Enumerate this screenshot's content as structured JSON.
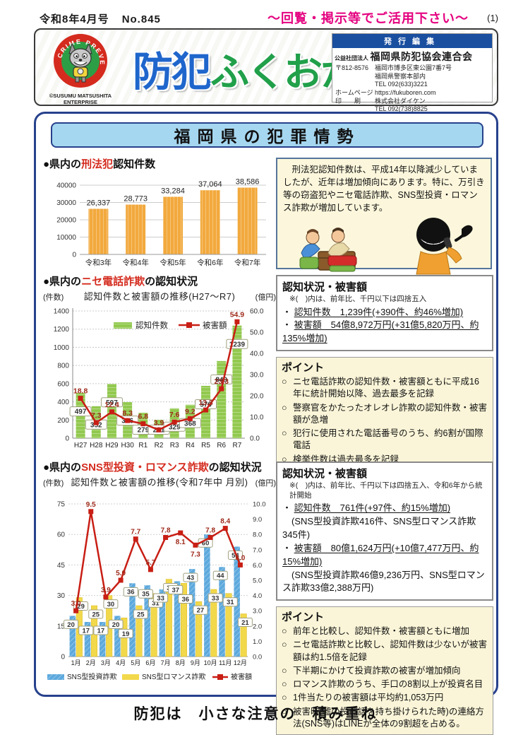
{
  "page": {
    "issue": "令和8年4月号",
    "number": "No.845",
    "notice": "〜回覧・掲示等でご活用下さい〜",
    "page_number": "(1)",
    "slogan": "防犯は　小さな注意の　積み重ね"
  },
  "masthead": {
    "title_part1": "防犯",
    "title_part2": "ふくおか",
    "logo_ring_text": "CRIME PREVENTION",
    "logo_credit1": "©SUSUMU MATSUSHITA",
    "logo_credit2": "ENTERPRISE",
    "publisher": {
      "header": "発行編集",
      "org_prefix": "公益社団法人",
      "org_name": "福岡県防犯協会連合会",
      "postal": "〒812-8576",
      "address1": "福岡市博多区東公園7番7号",
      "address2": "福岡県警察本部内",
      "tel1": "TEL 092(633)3221",
      "homepage_label": "ホームページ",
      "homepage": "https://fukuboren.com",
      "print_label": "印　　刷",
      "printer": "株式会社ダイケン",
      "tel2": "TEL 092(738)8825"
    }
  },
  "banner_title": "福岡県の犯罪情勢",
  "section1": {
    "heading_pre": "●県内の",
    "heading_red": "刑法犯",
    "heading_post": "認知件数",
    "info_text": "　刑法犯認知件数は、平成14年以降減少していましたが、近年は増加傾向にあります。特に、万引き等の窃盗犯やニセ電話詐欺、SNS型投資・ロマンス詐欺が増加しています。"
  },
  "section2": {
    "heading_pre": "●県内の",
    "heading_red": "ニセ電話詐欺",
    "heading_post": "の認知状況",
    "stats_title": "認知状況・被害額",
    "stats_note": "※(　)内は、前年比、千円以下は四捨五入",
    "stats": [
      {
        "bullet": "・",
        "text": "認知件数　1,239件(+390件、約46%増加)",
        "underline": true
      },
      {
        "bullet": "・",
        "text": "被害額　54億8,972万円(+31億5,820万円、約135%増加)",
        "underline": true
      }
    ],
    "points_title": "ポイント",
    "points_marker": "○",
    "points": [
      "ニセ電話詐欺の認知件数・被害額ともに平成16年に統計開始以降、過去最多を記録",
      "警察官をかたったオレオレ詐欺の認知件数・被害額が急増",
      "犯行に使用された電話番号のうち、約6割が国際電話",
      "検挙件数は過去最多を記録"
    ]
  },
  "section3": {
    "heading_pre": "●県内の",
    "heading_red": "SNS型投資・ロマンス詐欺",
    "heading_post": "の認知状況",
    "stats_title": "認知状況・被害額",
    "stats_note": "※(　)内は、前年比、千円以下は四捨五入、令和6年から統計開始",
    "stats": [
      {
        "bullet": "・",
        "text": "認知件数　761件(+97件、約15%増加)",
        "underline": true
      },
      {
        "bullet": "",
        "text": "(SNS型投資詐欺416件、SNS型ロマンス詐欺345件)",
        "underline": false
      },
      {
        "bullet": "・",
        "text": "被害額　80億1,624万円(+10億7,477万円、約15%増加)",
        "underline": true
      },
      {
        "bullet": "",
        "text": "(SNS型投資詐欺46億9,236万円、SNS型ロマンス詐欺33億2,388万円)",
        "underline": false
      }
    ],
    "points_title": "ポイント",
    "points_marker": "○",
    "points": [
      "前年と比較し、認知件数・被害額ともに増加",
      "ニセ電話詐欺と比較し、認知件数は少ないが被害額は約1.5倍を記録",
      "下半期にかけて投資詐欺の被害が増加傾向",
      "ロマンス詐欺のうち、手口の8割以上が投資名目",
      "1件当たりの被害額は平均約1,053万円",
      "被害時(嘘の投資話を持ち掛けられた時)の連絡方法(SNS等)はLINEが全体の9割超を占める。"
    ]
  },
  "chart_data": [
    {
      "type": "bar",
      "title": "県内の刑法犯認知件数",
      "categories": [
        "令和3年",
        "令和4年",
        "令和5年",
        "令和6年",
        "令和7年"
      ],
      "values": [
        26337,
        28773,
        33284,
        37064,
        38586
      ],
      "labels": [
        "26,337",
        "28,773",
        "33,284",
        "37,064",
        "38,586"
      ],
      "ylim": [
        0,
        40000
      ],
      "yticks": [
        0,
        10000,
        20000,
        30000,
        40000
      ],
      "bar_color": "#f2a93d",
      "grid": true,
      "legend": "none"
    },
    {
      "type": "bar+line",
      "title": "認知件数と被害額の推移(H27〜R7)",
      "left_unit": "(件数)",
      "right_unit": "(億円)",
      "categories": [
        "H27",
        "H28",
        "H29",
        "H30",
        "R1",
        "R2",
        "R3",
        "R4",
        "R5",
        "R6",
        "R7"
      ],
      "bars": {
        "name": "認知件数",
        "values": [
          497,
          352,
          597,
          396,
          279,
          201,
          329,
          368,
          576,
          849,
          1239
        ],
        "color": "#92c94f"
      },
      "line": {
        "name": "被害額",
        "values": [
          18.8,
          7.3,
          12.4,
          8.3,
          6.8,
          3.9,
          7.6,
          9.2,
          13.3,
          23.3,
          54.9
        ],
        "color": "#c81e14"
      },
      "left_ylim": [
        0,
        1400
      ],
      "left_ticks": [
        0,
        200,
        400,
        600,
        800,
        1000,
        1200,
        1400
      ],
      "right_ylim": [
        0,
        60
      ],
      "right_ticks": [
        "0.0",
        "10.0",
        "20.0",
        "30.0",
        "40.0",
        "50.0",
        "60.0"
      ],
      "grid": true,
      "legend_position": "top-inside"
    },
    {
      "type": "grouped-bar+line",
      "title": "認知件数と被害額の推移(令和7年中 月別)",
      "left_unit": "(件数)",
      "right_unit": "(億円)",
      "categories": [
        "1月",
        "2月",
        "3月",
        "4月",
        "5月",
        "6月",
        "7月",
        "8月",
        "9月",
        "10月",
        "11月",
        "12月"
      ],
      "series": [
        {
          "name": "SNS型投資詐欺",
          "values": [
            20,
            17,
            17,
            20,
            36,
            35,
            33,
            37,
            43,
            60,
            44,
            54
          ],
          "color": "#5da9dd"
        },
        {
          "name": "SNS型ロマンス詐欺",
          "values": [
            29,
            25,
            30,
            19,
            25,
            31,
            38,
            36,
            27,
            33,
            31,
            21
          ],
          "color": "#f2d84b"
        }
      ],
      "line": {
        "name": "被害額",
        "values": [
          3.0,
          9.5,
          3.9,
          5.0,
          7.7,
          5.7,
          7.8,
          8.1,
          7.3,
          7.8,
          8.4,
          6.0
        ],
        "color": "#c81e14"
      },
      "line_labels": [
        "3.0",
        "9.5",
        "3.9",
        "5.0",
        "7.7",
        "5.7",
        "7.8",
        "8.1",
        "7.3",
        "7.8",
        "8.4",
        "6.0"
      ],
      "left_ylim": [
        0,
        75
      ],
      "left_ticks": [
        0,
        15,
        30,
        45,
        60,
        75
      ],
      "right_ylim": [
        0,
        10
      ],
      "right_ticks": [
        "0.0",
        "1.0",
        "2.0",
        "3.0",
        "4.0",
        "5.0",
        "6.0",
        "7.0",
        "8.0",
        "9.0",
        "10.0"
      ],
      "grid": true,
      "legend_position": "bottom"
    }
  ]
}
